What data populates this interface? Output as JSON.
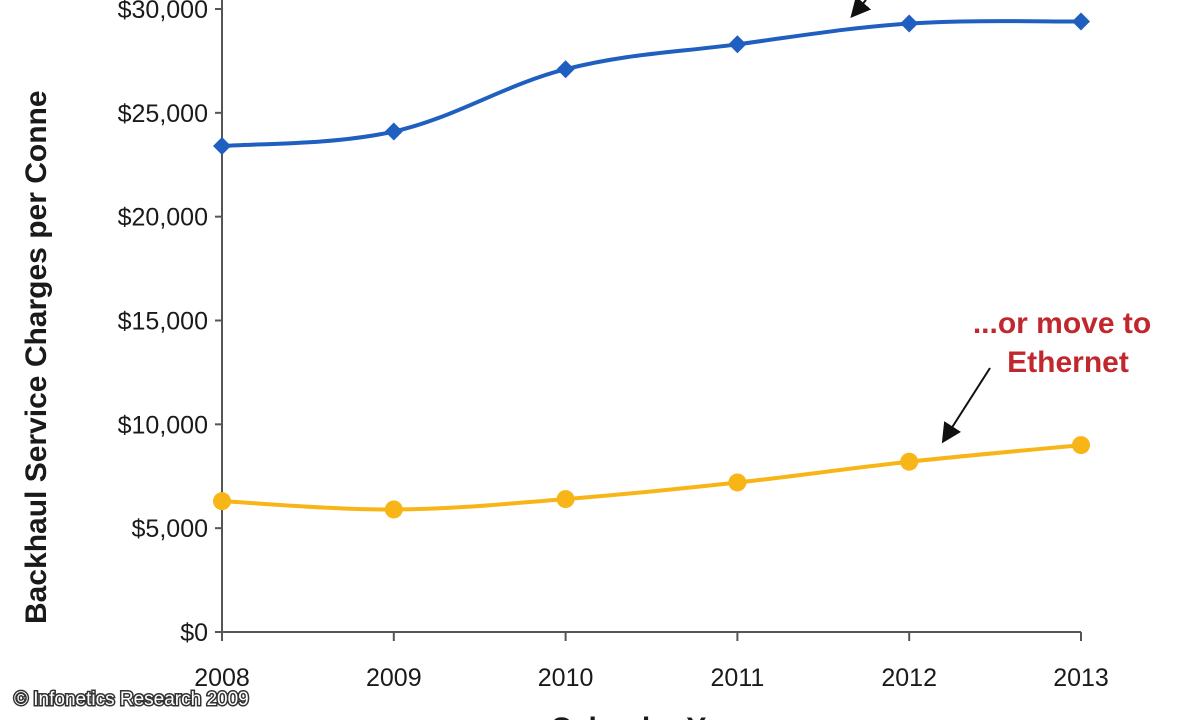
{
  "chart_data": {
    "type": "line",
    "x": [
      "2008",
      "2009",
      "2010",
      "2011",
      "2012",
      "2013"
    ],
    "ylabel": "Backhaul Service Charges per Conne",
    "xlabel": "Calendar Year",
    "ylim": [
      0,
      30000
    ],
    "yticks": [
      {
        "value": 0,
        "label": "$0"
      },
      {
        "value": 5000,
        "label": "$5,000"
      },
      {
        "value": 10000,
        "label": "$10,000"
      },
      {
        "value": 15000,
        "label": "$15,000"
      },
      {
        "value": 20000,
        "label": "$20,000"
      },
      {
        "value": 25000,
        "label": "$25,000"
      },
      {
        "value": 30000,
        "label": "$30,000"
      }
    ],
    "series": [
      {
        "values": [
          23400,
          24100,
          27100,
          28300,
          29300,
          29400
        ],
        "color": "#1f5fbf",
        "marker": "diamond"
      },
      {
        "values": [
          6300,
          5900,
          6400,
          7200,
          8200,
          9000
        ],
        "color": "#f7b517",
        "marker": "circle"
      }
    ],
    "annotations": [
      {
        "text_lines": [
          "...or move to",
          "Ethernet"
        ],
        "color": "#c0282e"
      }
    ],
    "grid": false,
    "legend": "none"
  },
  "copyright": "© Infonetics Research 2009"
}
